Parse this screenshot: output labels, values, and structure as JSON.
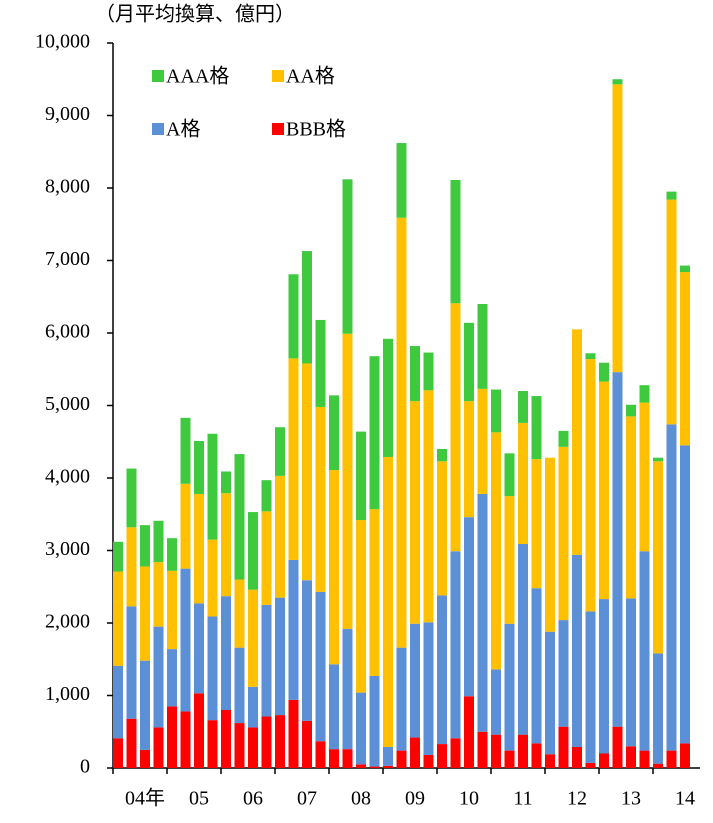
{
  "chart_data": {
    "type": "stacked_bar",
    "y_axis_label": "（月平均換算、億円）",
    "categories": [
      null,
      null,
      "04年",
      null,
      null,
      null,
      "05",
      null,
      null,
      null,
      "06",
      null,
      null,
      null,
      "07",
      null,
      null,
      null,
      "08",
      null,
      null,
      null,
      "09",
      null,
      null,
      null,
      "10",
      null,
      null,
      null,
      "11",
      null,
      null,
      null,
      "12",
      null,
      null,
      null,
      "13",
      null,
      null,
      null,
      "14"
    ],
    "series": [
      {
        "name": "BBB格",
        "color": "#ff0000",
        "values": [
          410,
          680,
          250,
          560,
          850,
          780,
          1030,
          660,
          800,
          620,
          560,
          710,
          730,
          940,
          650,
          370,
          260,
          260,
          50,
          20,
          30,
          240,
          420,
          180,
          330,
          410,
          990,
          500,
          460,
          240,
          460,
          340,
          190,
          570,
          290,
          70,
          200,
          570,
          300,
          240,
          60,
          240,
          340
        ]
      },
      {
        "name": "A格",
        "color": "#5b8fd6",
        "values": [
          1000,
          1550,
          1230,
          1390,
          790,
          1970,
          1240,
          1430,
          1570,
          1040,
          560,
          1540,
          1620,
          1930,
          1940,
          2060,
          1170,
          1660,
          990,
          1250,
          260,
          1420,
          1570,
          1830,
          2050,
          2580,
          2470,
          3280,
          900,
          1750,
          2630,
          2140,
          1690,
          1470,
          2650,
          2090,
          2130,
          4890,
          2040,
          2750,
          1520,
          4500,
          4110
        ]
      },
      {
        "name": "AA格",
        "color": "#ffc000",
        "values": [
          1300,
          1090,
          1300,
          890,
          1080,
          1170,
          1510,
          1060,
          1420,
          940,
          1340,
          1290,
          1680,
          2780,
          2990,
          2550,
          2680,
          4070,
          2380,
          2300,
          4000,
          5930,
          3070,
          3200,
          1850,
          3420,
          1600,
          1450,
          3270,
          1760,
          1670,
          1780,
          2400,
          2390,
          3110,
          3480,
          3000,
          3970,
          2510,
          2050,
          2650,
          3100,
          2390
        ]
      },
      {
        "name": "AAA格",
        "color": "#3ec93e",
        "values": [
          410,
          810,
          570,
          570,
          450,
          910,
          730,
          1460,
          300,
          1730,
          1070,
          430,
          670,
          1160,
          1550,
          1200,
          1030,
          2130,
          1220,
          2110,
          1630,
          1030,
          760,
          520,
          170,
          1700,
          1080,
          1170,
          590,
          590,
          440,
          870,
          0,
          220,
          0,
          80,
          260,
          70,
          160,
          240,
          50,
          110,
          90
        ]
      }
    ],
    "ylim": [
      0,
      10000
    ],
    "yticks": [
      0,
      {
        "value": 1000,
        "label": "1,000"
      },
      {
        "value": 2000,
        "label": "2,000"
      },
      {
        "value": 3000,
        "label": "3,000"
      },
      {
        "value": 4000,
        "label": "4,000"
      },
      {
        "value": 5000,
        "label": "5,000"
      },
      {
        "value": 6000,
        "label": "6,000"
      },
      {
        "value": 7000,
        "label": "7,000"
      },
      {
        "value": 8000,
        "label": "8,000"
      },
      {
        "value": 9000,
        "label": "9,000"
      },
      {
        "value": 10000,
        "label": "10,000"
      }
    ],
    "grid": false
  }
}
